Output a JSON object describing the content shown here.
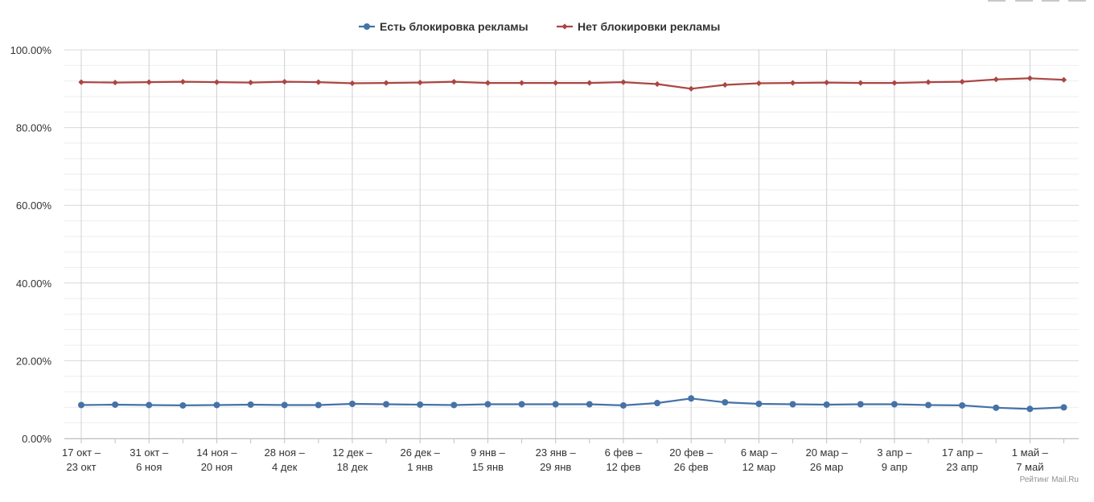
{
  "toolbar": {
    "buttons": [
      "",
      "",
      "",
      ""
    ]
  },
  "credit": "Рейтинг Mail.Ru",
  "chart_data": {
    "type": "line",
    "title": "",
    "xlabel": "",
    "ylabel": "",
    "legend_position": "top-center",
    "grid": true,
    "ylim": [
      0,
      100
    ],
    "y_ticks": [
      "0.00%",
      "20.00%",
      "40.00%",
      "60.00%",
      "80.00%",
      "100.00%"
    ],
    "x_tick_labels": [
      [
        "17 окт –",
        "23 окт"
      ],
      [
        "31 окт –",
        "6 ноя"
      ],
      [
        "14 ноя –",
        "20 ноя"
      ],
      [
        "28 ноя –",
        "4 дек"
      ],
      [
        "12 дек –",
        "18 дек"
      ],
      [
        "26 дек –",
        "1 янв"
      ],
      [
        "9 янв –",
        "15 янв"
      ],
      [
        "23 янв –",
        "29 янв"
      ],
      [
        "6 фев –",
        "12 фев"
      ],
      [
        "20 фев –",
        "26 фев"
      ],
      [
        "6 мар –",
        "12 мар"
      ],
      [
        "20 мар –",
        "26 мар"
      ],
      [
        "3 апр –",
        "9 апр"
      ],
      [
        "17 апр –",
        "23 апр"
      ],
      [
        "1 май –",
        "7 май"
      ]
    ],
    "series": [
      {
        "name": "Есть блокировка рекламы",
        "color": "#4572a7",
        "marker": "circle",
        "values": [
          8.6,
          8.7,
          8.6,
          8.5,
          8.6,
          8.7,
          8.6,
          8.6,
          8.9,
          8.8,
          8.7,
          8.6,
          8.8,
          8.8,
          8.8,
          8.8,
          8.5,
          9.1,
          10.3,
          9.3,
          8.9,
          8.8,
          8.7,
          8.8,
          8.8,
          8.6,
          8.5,
          7.9,
          7.6,
          8.0
        ]
      },
      {
        "name": "Нет блокировки рекламы",
        "color": "#aa4643",
        "marker": "diamond",
        "values": [
          91.7,
          91.6,
          91.7,
          91.8,
          91.7,
          91.6,
          91.8,
          91.7,
          91.4,
          91.5,
          91.6,
          91.8,
          91.5,
          91.5,
          91.5,
          91.5,
          91.7,
          91.2,
          90.0,
          91.0,
          91.4,
          91.5,
          91.6,
          91.5,
          91.5,
          91.7,
          91.8,
          92.4,
          92.7,
          92.3
        ]
      }
    ]
  }
}
